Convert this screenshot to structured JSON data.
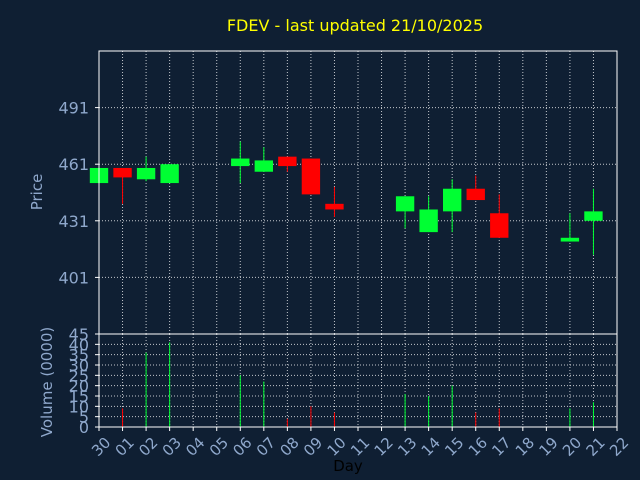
{
  "chart_data": [
    {
      "type": "candlestick",
      "title": "FDEV - last updated 21/10/2025",
      "ylabel": "Price",
      "xlabel": "",
      "ylim": [
        371,
        521
      ],
      "yticks": [
        401,
        431,
        461,
        491
      ],
      "colors": {
        "up": "#00ff33",
        "down": "#ff0000",
        "background": "#0f1f33",
        "title": "#ffff00",
        "axis_text": "#8fa8cc"
      },
      "grid": true,
      "x": [
        "30",
        "01",
        "02",
        "03",
        "04",
        "05",
        "06",
        "07",
        "08",
        "09",
        "10",
        "11",
        "12",
        "13",
        "14",
        "15",
        "16",
        "17",
        "18",
        "19",
        "20",
        "21",
        "22"
      ],
      "candles": [
        {
          "x": "30",
          "open": 451,
          "close": 459,
          "high": 459,
          "low": 451
        },
        {
          "x": "01",
          "open": 459,
          "close": 454,
          "high": 459,
          "low": 440
        },
        {
          "x": "02",
          "open": 453,
          "close": 459,
          "high": 465,
          "low": 452
        },
        {
          "x": "03",
          "open": 451,
          "close": 461,
          "high": 461,
          "low": 451
        },
        {
          "x": "06",
          "open": 460,
          "close": 464,
          "high": 473,
          "low": 451
        },
        {
          "x": "07",
          "open": 457,
          "close": 463,
          "high": 470,
          "low": 457
        },
        {
          "x": "08",
          "open": 465,
          "close": 460,
          "high": 465,
          "low": 457
        },
        {
          "x": "09",
          "open": 464,
          "close": 445,
          "high": 464,
          "low": 445
        },
        {
          "x": "10",
          "open": 440,
          "close": 437,
          "high": 449,
          "low": 433
        },
        {
          "x": "13",
          "open": 436,
          "close": 444,
          "high": 444,
          "low": 427
        },
        {
          "x": "14",
          "open": 425,
          "close": 437,
          "high": 444,
          "low": 425
        },
        {
          "x": "15",
          "open": 436,
          "close": 448,
          "high": 453,
          "low": 425
        },
        {
          "x": "16",
          "open": 448,
          "close": 442,
          "high": 455,
          "low": 442
        },
        {
          "x": "17",
          "open": 435,
          "close": 422,
          "high": 445,
          "low": 422
        },
        {
          "x": "20",
          "open": 420,
          "close": 422,
          "high": 435,
          "low": 420
        },
        {
          "x": "21",
          "open": 431,
          "close": 436,
          "high": 448,
          "low": 413
        }
      ]
    },
    {
      "type": "bar",
      "ylabel": "Volume (0000)",
      "xlabel": "Day",
      "ylim": [
        0,
        45
      ],
      "yticks": [
        0,
        5,
        10,
        15,
        20,
        25,
        30,
        35,
        40,
        45
      ],
      "categories": [
        "30",
        "01",
        "02",
        "03",
        "04",
        "05",
        "06",
        "07",
        "08",
        "09",
        "10",
        "11",
        "12",
        "13",
        "14",
        "15",
        "16",
        "17",
        "18",
        "19",
        "20",
        "21",
        "22"
      ],
      "volumes": [
        {
          "x": "01",
          "value": 9,
          "direction": "down"
        },
        {
          "x": "02",
          "value": 36,
          "direction": "up"
        },
        {
          "x": "03",
          "value": 41,
          "direction": "up"
        },
        {
          "x": "06",
          "value": 25,
          "direction": "up"
        },
        {
          "x": "07",
          "value": 22,
          "direction": "up"
        },
        {
          "x": "08",
          "value": 4,
          "direction": "down"
        },
        {
          "x": "09",
          "value": 10,
          "direction": "down"
        },
        {
          "x": "10",
          "value": 7,
          "direction": "down"
        },
        {
          "x": "13",
          "value": 16,
          "direction": "up"
        },
        {
          "x": "14",
          "value": 15,
          "direction": "up"
        },
        {
          "x": "15",
          "value": 20,
          "direction": "up"
        },
        {
          "x": "16",
          "value": 7,
          "direction": "down"
        },
        {
          "x": "17",
          "value": 9,
          "direction": "down"
        },
        {
          "x": "20",
          "value": 9,
          "direction": "up"
        },
        {
          "x": "21",
          "value": 12,
          "direction": "up"
        }
      ]
    }
  ]
}
